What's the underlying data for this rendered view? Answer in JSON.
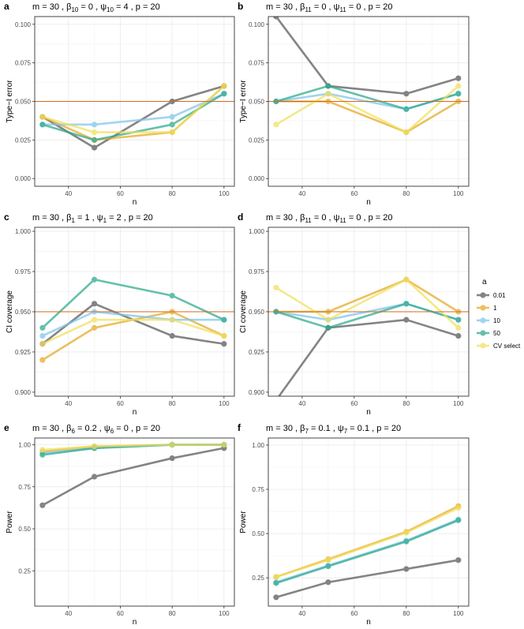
{
  "legend": {
    "title": "a",
    "entries": [
      {
        "label": "0.01",
        "color": "#555555"
      },
      {
        "label": "1",
        "color": "#E5A823"
      },
      {
        "label": "10",
        "color": "#7EC4EC"
      },
      {
        "label": "50",
        "color": "#2BA98B"
      },
      {
        "label": "CV select",
        "color": "#F0E05A"
      }
    ]
  },
  "reference_line_color": "#D2691E",
  "chart_data": [
    {
      "type": "line",
      "panel_label": "a",
      "title": "m = 30 ,  β10 = 0 ,  ψ10 = 4 ,  p = 20",
      "title_parts": {
        "m": "30",
        "beta_sub": "10",
        "beta_val": "0",
        "psi_sub": "10",
        "psi_val": "4",
        "p": "20"
      },
      "xlabel": "n",
      "ylabel": "Type−I error",
      "x": [
        30,
        50,
        80,
        100
      ],
      "xlim": [
        27,
        104
      ],
      "xticks": [
        "40",
        "60",
        "80",
        "100"
      ],
      "ylim": [
        -0.005,
        0.105
      ],
      "yticks": [
        "0.000",
        "0.025",
        "0.050",
        "0.075",
        "0.100"
      ],
      "reference": 0.05,
      "series": [
        {
          "name": "0.01",
          "values": [
            0.04,
            0.02,
            0.05,
            0.06
          ]
        },
        {
          "name": "1",
          "values": [
            0.04,
            0.025,
            0.03,
            0.06
          ]
        },
        {
          "name": "10",
          "values": [
            0.035,
            0.035,
            0.04,
            0.055
          ]
        },
        {
          "name": "50",
          "values": [
            0.035,
            0.025,
            0.035,
            0.055
          ]
        },
        {
          "name": "CV select",
          "values": [
            0.04,
            0.03,
            0.03,
            0.06
          ]
        }
      ]
    },
    {
      "type": "line",
      "panel_label": "b",
      "title": "m = 30 ,  β11 = 0 ,  ψ11 = 0 ,  p = 20",
      "title_parts": {
        "m": "30",
        "beta_sub": "11",
        "beta_val": "0",
        "psi_sub": "11",
        "psi_val": "0",
        "p": "20"
      },
      "xlabel": "n",
      "ylabel": "Type−I error",
      "x": [
        30,
        50,
        80,
        100
      ],
      "xlim": [
        27,
        104
      ],
      "xticks": [
        "40",
        "60",
        "80",
        "100"
      ],
      "ylim": [
        -0.005,
        0.105
      ],
      "yticks": [
        "0.000",
        "0.025",
        "0.050",
        "0.075",
        "0.100"
      ],
      "reference": 0.05,
      "series": [
        {
          "name": "0.01",
          "values": [
            0.105,
            0.06,
            0.055,
            0.065
          ]
        },
        {
          "name": "1",
          "values": [
            0.05,
            0.05,
            0.03,
            0.05
          ]
        },
        {
          "name": "10",
          "values": [
            0.05,
            0.055,
            0.045,
            0.055
          ]
        },
        {
          "name": "50",
          "values": [
            0.05,
            0.06,
            0.045,
            0.055
          ]
        },
        {
          "name": "CV select",
          "values": [
            0.035,
            0.055,
            0.03,
            0.06
          ]
        }
      ]
    },
    {
      "type": "line",
      "panel_label": "c",
      "title": "m = 30 ,  β1 = 1 ,  ψ1 = 2 ,  p = 20",
      "title_parts": {
        "m": "30",
        "beta_sub": "1",
        "beta_val": "1",
        "psi_sub": "1",
        "psi_val": "2",
        "p": "20"
      },
      "xlabel": "n",
      "ylabel": "CI coverage",
      "x": [
        30,
        50,
        80,
        100
      ],
      "xlim": [
        27,
        104
      ],
      "xticks": [
        "40",
        "60",
        "80",
        "100"
      ],
      "ylim": [
        0.8975,
        1.0025
      ],
      "yticks": [
        "0.900",
        "0.925",
        "0.950",
        "0.975",
        "1.000"
      ],
      "reference": 0.95,
      "series": [
        {
          "name": "0.01",
          "values": [
            0.93,
            0.955,
            0.935,
            0.93
          ]
        },
        {
          "name": "1",
          "values": [
            0.92,
            0.94,
            0.95,
            0.935
          ]
        },
        {
          "name": "10",
          "values": [
            0.935,
            0.95,
            0.945,
            0.945
          ]
        },
        {
          "name": "50",
          "values": [
            0.94,
            0.97,
            0.96,
            0.945
          ]
        },
        {
          "name": "CV select",
          "values": [
            0.93,
            0.945,
            0.945,
            0.935
          ]
        }
      ]
    },
    {
      "type": "line",
      "panel_label": "d",
      "title": "m = 30 ,  β11 = 0 ,  ψ11 = 0 ,  p = 20",
      "title_parts": {
        "m": "30",
        "beta_sub": "11",
        "beta_val": "0",
        "psi_sub": "11",
        "psi_val": "0",
        "p": "20"
      },
      "xlabel": "n",
      "ylabel": "CI coverage",
      "x": [
        30,
        50,
        80,
        100
      ],
      "xlim": [
        27,
        104
      ],
      "xticks": [
        "40",
        "60",
        "80",
        "100"
      ],
      "ylim": [
        0.8975,
        1.0025
      ],
      "yticks": [
        "0.900",
        "0.925",
        "0.950",
        "0.975",
        "1.000"
      ],
      "reference": 0.95,
      "series": [
        {
          "name": "0.01",
          "values": [
            0.895,
            0.94,
            0.945,
            0.935
          ]
        },
        {
          "name": "1",
          "values": [
            0.95,
            0.95,
            0.97,
            0.95
          ]
        },
        {
          "name": "10",
          "values": [
            0.95,
            0.945,
            0.955,
            0.945
          ]
        },
        {
          "name": "50",
          "values": [
            0.95,
            0.94,
            0.955,
            0.945
          ]
        },
        {
          "name": "CV select",
          "values": [
            0.965,
            0.945,
            0.97,
            0.94
          ]
        }
      ]
    },
    {
      "type": "line",
      "panel_label": "e",
      "title": "m = 30 ,  β6 = 0.2 ,  ψ6 = 0 ,  p = 20",
      "title_parts": {
        "m": "30",
        "beta_sub": "6",
        "beta_val": "0.2",
        "psi_sub": "6",
        "psi_val": "0",
        "p": "20"
      },
      "xlabel": "n",
      "ylabel": "Power",
      "x": [
        30,
        50,
        80,
        100
      ],
      "xlim": [
        27,
        104
      ],
      "xticks": [
        "40",
        "60",
        "80",
        "100"
      ],
      "ylim": [
        0.04,
        1.04
      ],
      "yticks": [
        "0.25",
        "0.50",
        "0.75",
        "1.00"
      ],
      "reference": null,
      "series": [
        {
          "name": "0.01",
          "values": [
            0.64,
            0.81,
            0.92,
            0.98
          ]
        },
        {
          "name": "1",
          "values": [
            0.96,
            0.99,
            1.0,
            1.0
          ]
        },
        {
          "name": "10",
          "values": [
            0.95,
            0.98,
            1.0,
            1.0
          ]
        },
        {
          "name": "50",
          "values": [
            0.94,
            0.98,
            1.0,
            1.0
          ]
        },
        {
          "name": "CV select",
          "values": [
            0.97,
            0.99,
            1.0,
            1.0
          ]
        }
      ]
    },
    {
      "type": "line",
      "panel_label": "f",
      "title": "m = 30 ,  β7 = 0.1 ,  ψ7 = 0.1 ,  p = 20",
      "title_parts": {
        "m": "30",
        "beta_sub": "7",
        "beta_val": "0.1",
        "psi_sub": "7",
        "psi_val": "0.1",
        "p": "20"
      },
      "xlabel": "n",
      "ylabel": "Power",
      "x": [
        30,
        50,
        80,
        100
      ],
      "xlim": [
        27,
        104
      ],
      "xticks": [
        "40",
        "60",
        "80",
        "100"
      ],
      "ylim": [
        0.09,
        1.04
      ],
      "yticks": [
        "0.25",
        "0.50",
        "0.75",
        "1.00"
      ],
      "reference": null,
      "series": [
        {
          "name": "0.01",
          "values": [
            0.14,
            0.225,
            0.3,
            0.35
          ]
        },
        {
          "name": "1",
          "values": [
            0.255,
            0.355,
            0.51,
            0.655
          ]
        },
        {
          "name": "10",
          "values": [
            0.225,
            0.32,
            0.46,
            0.58
          ]
        },
        {
          "name": "50",
          "values": [
            0.22,
            0.315,
            0.455,
            0.575
          ]
        },
        {
          "name": "CV select",
          "values": [
            0.255,
            0.35,
            0.505,
            0.645
          ]
        }
      ]
    }
  ]
}
